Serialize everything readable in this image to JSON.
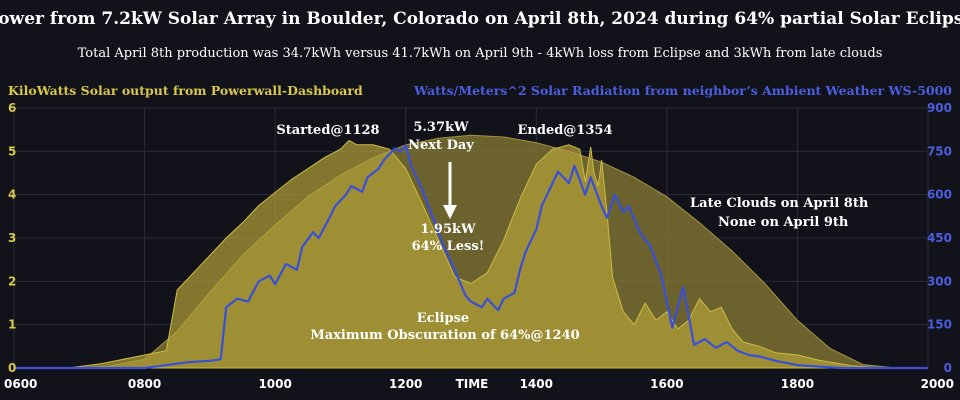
{
  "chart_data": {
    "type": "area",
    "title": "Power from 7.2kW Solar Array in Boulder, Colorado on April 8th, 2024 during 64% partial Solar Eclipse",
    "subtitle": "Total April 8th production was 34.7kWh versus 41.7kWh on April 9th - 4kWh loss from Eclipse and 3kWh from late clouds",
    "ylabel_left": "KiloWatts Solar output from Powerwall-Dashboard",
    "ylabel_right": "Watts/Meters^2 Solar Radiation from neighbor’s Ambient Weather WS-5000",
    "xlabel": "TIME",
    "xlim": [
      360,
      1200
    ],
    "ylim_left": [
      0,
      6
    ],
    "ylim_right": [
      0,
      900
    ],
    "x_ticks": [
      "0600",
      "0800",
      "1000",
      "1200",
      "1400",
      "1600",
      "1800",
      "2000"
    ],
    "y_ticks_left": [
      "0",
      "1",
      "2",
      "3",
      "4",
      "5",
      "6"
    ],
    "y_ticks_right": [
      "0",
      "150",
      "300",
      "450",
      "600",
      "750",
      "900"
    ],
    "grid": true,
    "colors": {
      "next_day": "#8a7d35",
      "eclipse_day": "#b3a239",
      "radiation": "#3a4fd8",
      "left_axis": "#d9c84a",
      "right_axis": "#4b5ee0",
      "background": "#12131a"
    },
    "series": [
      {
        "axis": "left",
        "x": [
          360,
          420,
          450,
          480,
          510,
          540,
          570,
          600,
          630,
          660,
          690,
          720,
          750,
          780,
          810,
          840,
          870,
          900,
          930,
          960,
          990,
          1020,
          1050,
          1080,
          1110,
          1140,
          1170,
          1200
        ],
        "values": [
          0,
          0,
          0.05,
          0.2,
          0.85,
          1.75,
          2.6,
          3.3,
          3.95,
          4.45,
          4.85,
          5.15,
          5.3,
          5.37,
          5.33,
          5.2,
          5.0,
          4.75,
          4.4,
          3.95,
          3.35,
          2.7,
          1.95,
          1.1,
          0.45,
          0.08,
          0,
          0
        ]
      },
      {
        "axis": "left",
        "x": [
          360,
          410,
          440,
          480,
          500,
          510,
          525,
          540,
          555,
          570,
          585,
          600,
          615,
          630,
          645,
          660,
          668,
          675,
          690,
          705,
          720,
          735,
          750,
          765,
          780,
          795,
          810,
          825,
          840,
          855,
          870,
          880,
          885,
          890,
          893,
          897,
          900,
          905,
          910,
          920,
          930,
          940,
          950,
          960,
          970,
          980,
          990,
          1000,
          1010,
          1020,
          1030,
          1045,
          1060,
          1080,
          1100,
          1130,
          1160,
          1200
        ],
        "values": [
          0,
          0,
          0.1,
          0.3,
          0.4,
          1.8,
          2.2,
          2.6,
          3.0,
          3.35,
          3.75,
          4.05,
          4.35,
          4.6,
          4.85,
          5.05,
          5.25,
          5.15,
          5.15,
          5.05,
          4.6,
          3.8,
          2.95,
          2.1,
          1.95,
          2.2,
          2.95,
          3.9,
          4.7,
          5.05,
          5.15,
          5.05,
          4.3,
          5.1,
          4.5,
          4.2,
          4.8,
          3.6,
          2.1,
          1.3,
          1.0,
          1.5,
          1.1,
          1.3,
          0.9,
          1.1,
          1.6,
          1.3,
          1.4,
          0.9,
          0.6,
          0.5,
          0.35,
          0.3,
          0.18,
          0.05,
          0,
          0
        ]
      },
      {
        "axis": "right",
        "x": [
          360,
          420,
          480,
          520,
          540,
          550,
          555,
          565,
          575,
          585,
          595,
          600,
          610,
          620,
          625,
          635,
          640,
          650,
          655,
          665,
          670,
          680,
          685,
          695,
          700,
          710,
          715,
          720,
          725,
          735,
          745,
          755,
          765,
          775,
          780,
          790,
          795,
          805,
          810,
          820,
          825,
          830,
          840,
          845,
          855,
          860,
          870,
          875,
          885,
          890,
          895,
          900,
          905,
          912,
          920,
          925,
          935,
          945,
          955,
          965,
          975,
          985,
          995,
          1005,
          1015,
          1025,
          1035,
          1045,
          1060,
          1080,
          1100,
          1120,
          1140,
          1160,
          1200
        ],
        "values": [
          0,
          0,
          0,
          20,
          25,
          30,
          210,
          240,
          230,
          300,
          320,
          290,
          360,
          340,
          420,
          470,
          450,
          520,
          560,
          600,
          630,
          610,
          660,
          690,
          720,
          760,
          750,
          770,
          700,
          620,
          520,
          420,
          340,
          250,
          230,
          210,
          240,
          200,
          240,
          260,
          340,
          400,
          480,
          560,
          640,
          680,
          640,
          700,
          600,
          660,
          610,
          560,
          520,
          600,
          540,
          560,
          470,
          420,
          320,
          140,
          280,
          80,
          100,
          70,
          90,
          60,
          45,
          40,
          25,
          10,
          5,
          0,
          0,
          0,
          0
        ]
      }
    ],
    "annotations": {
      "started": "Started@1128",
      "next_day_value": "5.37kW",
      "next_day_label": "Next Day",
      "ended": "Ended@1354",
      "eclipse_value": "1.95kW",
      "eclipse_less": "64% Less!",
      "eclipse_label": "Eclipse",
      "max_obscuration": "Maximum Obscuration of 64%@1240",
      "late_clouds": "Late Clouds on April 8th",
      "none_next_day": "None on April 9th"
    }
  }
}
